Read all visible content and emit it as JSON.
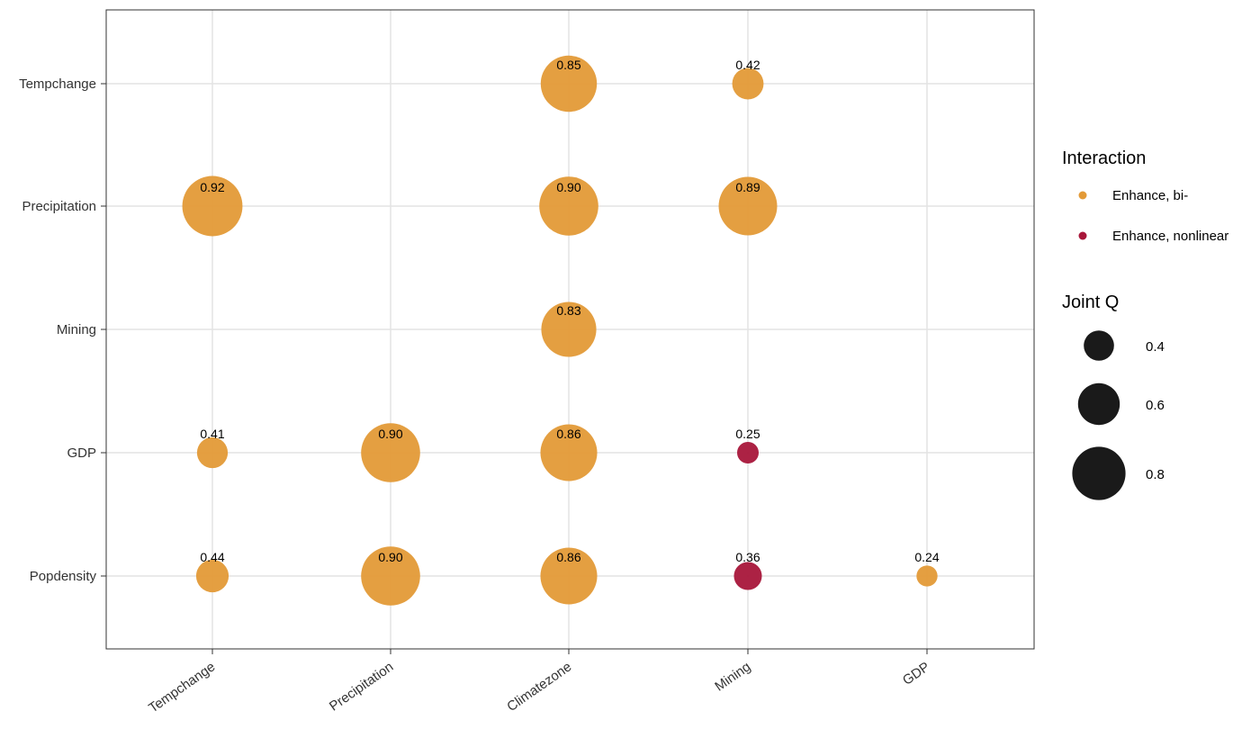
{
  "chart_data": {
    "type": "scatter",
    "x_categories": [
      "Tempchange",
      "Precipitation",
      "Climatezone",
      "Mining",
      "GDP"
    ],
    "y_categories": [
      "Popdensity",
      "GDP",
      "Mining",
      "Precipitation",
      "Tempchange"
    ],
    "points": [
      {
        "x": "Climatezone",
        "y": "Tempchange",
        "q": 0.85,
        "label": "0.85",
        "type": "Enhance, bi-"
      },
      {
        "x": "Mining",
        "y": "Tempchange",
        "q": 0.42,
        "label": "0.42",
        "type": "Enhance, bi-"
      },
      {
        "x": "Tempchange",
        "y": "Precipitation",
        "q": 0.92,
        "label": "0.92",
        "type": "Enhance, bi-"
      },
      {
        "x": "Climatezone",
        "y": "Precipitation",
        "q": 0.9,
        "label": "0.90",
        "type": "Enhance, bi-"
      },
      {
        "x": "Mining",
        "y": "Precipitation",
        "q": 0.89,
        "label": "0.89",
        "type": "Enhance, bi-"
      },
      {
        "x": "Climatezone",
        "y": "Mining",
        "q": 0.83,
        "label": "0.83",
        "type": "Enhance, bi-"
      },
      {
        "x": "Tempchange",
        "y": "GDP",
        "q": 0.41,
        "label": "0.41",
        "type": "Enhance, bi-"
      },
      {
        "x": "Precipitation",
        "y": "GDP",
        "q": 0.9,
        "label": "0.90",
        "type": "Enhance, bi-"
      },
      {
        "x": "Climatezone",
        "y": "GDP",
        "q": 0.86,
        "label": "0.86",
        "type": "Enhance, bi-"
      },
      {
        "x": "Mining",
        "y": "GDP",
        "q": 0.25,
        "label": "0.25",
        "type": "Enhance, nonlinear"
      },
      {
        "x": "Tempchange",
        "y": "Popdensity",
        "q": 0.44,
        "label": "0.44",
        "type": "Enhance, bi-"
      },
      {
        "x": "Precipitation",
        "y": "Popdensity",
        "q": 0.9,
        "label": "0.90",
        "type": "Enhance, bi-"
      },
      {
        "x": "Climatezone",
        "y": "Popdensity",
        "q": 0.86,
        "label": "0.86",
        "type": "Enhance, bi-"
      },
      {
        "x": "Mining",
        "y": "Popdensity",
        "q": 0.36,
        "label": "0.36",
        "type": "Enhance, nonlinear"
      },
      {
        "x": "GDP",
        "y": "Popdensity",
        "q": 0.24,
        "label": "0.24",
        "type": "Enhance, bi-"
      }
    ],
    "legend": {
      "color_title": "Interaction",
      "color_entries": [
        {
          "label": "Enhance, bi-",
          "color": "#E39A37"
        },
        {
          "label": "Enhance, nonlinear",
          "color": "#A8163A"
        }
      ],
      "size_title": "Joint Q",
      "size_entries": [
        {
          "label": "0.4",
          "value": 0.4
        },
        {
          "label": "0.6",
          "value": 0.6
        },
        {
          "label": "0.8",
          "value": 0.8
        }
      ],
      "placement": "right"
    },
    "grid": true,
    "xlabel": "",
    "ylabel": "",
    "title": ""
  }
}
